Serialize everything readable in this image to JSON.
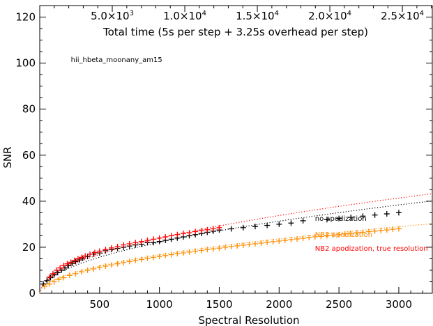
{
  "chart_data": {
    "type": "scatter",
    "xlabel": "Spectral Resolution",
    "ylabel": "SNR",
    "xlim": [
      0,
      3280
    ],
    "ylim": [
      0,
      125
    ],
    "x_ticks": [
      500,
      1000,
      1500,
      2000,
      2500,
      3000
    ],
    "y_ticks": [
      0,
      20,
      40,
      60,
      80,
      100,
      120
    ],
    "grid": false,
    "top_axis": {
      "label": "Total time (5s per step + 3.25s overhead per step)",
      "ticks": [
        {
          "mantissa": "5.0×10",
          "exp": "3",
          "x": 606
        },
        {
          "mantissa": "1.0×10",
          "exp": "4",
          "x": 1212
        },
        {
          "mantissa": "1.5×10",
          "exp": "4",
          "x": 1818
        },
        {
          "mantissa": "2.0×10",
          "exp": "4",
          "x": 2424
        },
        {
          "mantissa": "2.5×10",
          "exp": "4",
          "x": 3030
        }
      ]
    },
    "annotations": [
      {
        "text": "hii_hbeta_moonany_am15",
        "x": 260,
        "y": 100.5,
        "color": "#000000"
      },
      {
        "text": "no apodization",
        "x": 2300,
        "y": 31.5,
        "color": "#000000"
      },
      {
        "text": "NB2 apodization",
        "x": 2300,
        "y": 24.5,
        "color": "#ff8c00"
      },
      {
        "text": "NB2 apodization, true resolution",
        "x": 2300,
        "y": 18.5,
        "color": "#ff0000"
      }
    ],
    "series": [
      {
        "color": "#000000",
        "marker": "+",
        "points": [
          [
            30,
            4
          ],
          [
            60,
            5.5
          ],
          [
            90,
            6.8
          ],
          [
            120,
            8
          ],
          [
            150,
            9
          ],
          [
            180,
            10
          ],
          [
            210,
            11
          ],
          [
            240,
            12
          ],
          [
            270,
            13
          ],
          [
            300,
            13.8
          ],
          [
            330,
            14.5
          ],
          [
            360,
            15.2
          ],
          [
            400,
            16
          ],
          [
            450,
            17
          ],
          [
            500,
            17.5
          ],
          [
            550,
            18.5
          ],
          [
            600,
            19
          ],
          [
            650,
            19.5
          ],
          [
            700,
            20
          ],
          [
            750,
            20.5
          ],
          [
            800,
            21
          ],
          [
            850,
            21.3
          ],
          [
            900,
            22
          ],
          [
            950,
            22
          ],
          [
            1000,
            22.5
          ],
          [
            1050,
            23
          ],
          [
            1100,
            23.5
          ],
          [
            1150,
            24
          ],
          [
            1200,
            24.5
          ],
          [
            1250,
            25
          ],
          [
            1300,
            25.5
          ],
          [
            1350,
            26
          ],
          [
            1400,
            26.5
          ],
          [
            1450,
            27
          ],
          [
            1500,
            27.5
          ],
          [
            1600,
            28
          ],
          [
            1700,
            28.5
          ],
          [
            1800,
            29
          ],
          [
            1900,
            29.5
          ],
          [
            2000,
            30
          ],
          [
            2100,
            30.5
          ],
          [
            2200,
            31.5
          ],
          [
            2400,
            32
          ],
          [
            2500,
            32.5
          ],
          [
            2600,
            33
          ],
          [
            2700,
            33.5
          ],
          [
            2800,
            34
          ],
          [
            2900,
            34.5
          ],
          [
            3000,
            35
          ]
        ]
      },
      {
        "color": "#ff0000",
        "marker": "+",
        "points": [
          [
            80,
            7
          ],
          [
            110,
            8.5
          ],
          [
            140,
            10
          ],
          [
            170,
            11
          ],
          [
            200,
            12
          ],
          [
            230,
            12.8
          ],
          [
            260,
            13.5
          ],
          [
            290,
            14.3
          ],
          [
            320,
            15
          ],
          [
            350,
            15.6
          ],
          [
            380,
            16.2
          ],
          [
            420,
            17
          ],
          [
            460,
            17.7
          ],
          [
            500,
            18.3
          ],
          [
            550,
            19
          ],
          [
            600,
            19.7
          ],
          [
            650,
            20.3
          ],
          [
            700,
            21
          ],
          [
            750,
            21.5
          ],
          [
            800,
            22
          ],
          [
            850,
            22.5
          ],
          [
            900,
            23
          ],
          [
            950,
            23.5
          ],
          [
            1000,
            24
          ],
          [
            1050,
            24.5
          ],
          [
            1100,
            25
          ],
          [
            1150,
            25.5
          ],
          [
            1200,
            26
          ],
          [
            1250,
            26.3
          ],
          [
            1300,
            26.8
          ],
          [
            1350,
            27.2
          ],
          [
            1400,
            27.6
          ],
          [
            1450,
            28
          ],
          [
            1500,
            28.5
          ]
        ]
      },
      {
        "color": "#ff8c00",
        "marker": "+",
        "points": [
          [
            40,
            3
          ],
          [
            80,
            4
          ],
          [
            120,
            5
          ],
          [
            160,
            6
          ],
          [
            200,
            6.8
          ],
          [
            250,
            7.8
          ],
          [
            300,
            8.5
          ],
          [
            350,
            9.3
          ],
          [
            400,
            10
          ],
          [
            450,
            10.6
          ],
          [
            500,
            11.2
          ],
          [
            550,
            11.8
          ],
          [
            600,
            12.3
          ],
          [
            650,
            12.8
          ],
          [
            700,
            13.3
          ],
          [
            750,
            13.8
          ],
          [
            800,
            14.3
          ],
          [
            850,
            14.7
          ],
          [
            900,
            15.2
          ],
          [
            950,
            15.6
          ],
          [
            1000,
            16
          ],
          [
            1050,
            16.4
          ],
          [
            1100,
            16.8
          ],
          [
            1150,
            17.2
          ],
          [
            1200,
            17.5
          ],
          [
            1250,
            17.9
          ],
          [
            1300,
            18.3
          ],
          [
            1350,
            18.6
          ],
          [
            1400,
            19
          ],
          [
            1450,
            19.3
          ],
          [
            1500,
            19.6
          ],
          [
            1550,
            20
          ],
          [
            1600,
            20.3
          ],
          [
            1650,
            20.6
          ],
          [
            1700,
            20.9
          ],
          [
            1750,
            21.2
          ],
          [
            1800,
            21.5
          ],
          [
            1850,
            21.8
          ],
          [
            1900,
            22.1
          ],
          [
            1950,
            22.4
          ],
          [
            2000,
            22.7
          ],
          [
            2050,
            23
          ],
          [
            2100,
            23.3
          ],
          [
            2150,
            23.6
          ],
          [
            2200,
            23.9
          ],
          [
            2250,
            24.2
          ],
          [
            2300,
            24.5
          ],
          [
            2350,
            24.7
          ],
          [
            2400,
            25
          ],
          [
            2450,
            25.3
          ],
          [
            2500,
            25.5
          ],
          [
            2550,
            25.8
          ],
          [
            2600,
            26
          ],
          [
            2650,
            26.3
          ],
          [
            2700,
            26.5
          ],
          [
            2750,
            26.8
          ],
          [
            2800,
            27
          ],
          [
            2850,
            27.3
          ],
          [
            2900,
            27.5
          ],
          [
            2950,
            27.8
          ],
          [
            3000,
            28
          ]
        ]
      }
    ],
    "fit_curves": [
      {
        "color": "#000000",
        "style": "dotted",
        "coef": 0.7005,
        "power": 0.5
      },
      {
        "color": "#ff0000",
        "style": "dotted",
        "coef": 0.7553,
        "power": 0.5
      },
      {
        "color": "#ff8c00",
        "style": "dotted",
        "coef": 0.5277,
        "power": 0.5
      }
    ]
  }
}
